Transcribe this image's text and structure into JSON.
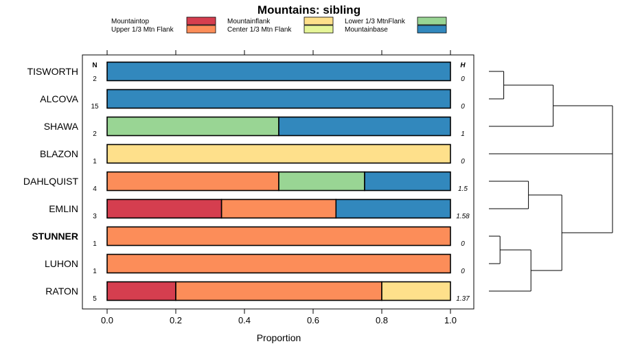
{
  "chart_data": {
    "type": "bar",
    "stacked": true,
    "orientation": "horizontal",
    "title": "Mountains: sibling",
    "xlabel": "Proportion",
    "xlim": [
      0,
      1
    ],
    "xticks": [
      0.0,
      0.2,
      0.4,
      0.6,
      0.8,
      1.0
    ],
    "xtick_labels": [
      "0.0",
      "0.2",
      "0.4",
      "0.6",
      "0.8",
      "1.0"
    ],
    "n_header": "N",
    "h_header": "H",
    "legend": [
      {
        "name": "Mountaintop",
        "color": "#d53e4f"
      },
      {
        "name": "Upper 1/3 Mtn Flank",
        "color": "#fc8d59"
      },
      {
        "name": "Mountainflank",
        "color": "#fee08b"
      },
      {
        "name": "Center 1/3 Mtn Flank",
        "color": "#e6f598"
      },
      {
        "name": "Lower 1/3 MtnFlank",
        "color": "#99d594"
      },
      {
        "name": "Mountainbase",
        "color": "#3288bd"
      }
    ],
    "rows": [
      {
        "label": "TISWORTH",
        "bold": false,
        "n": "2",
        "h": "0",
        "segments": [
          {
            "cat": 5,
            "value": 1.0
          }
        ]
      },
      {
        "label": "ALCOVA",
        "bold": false,
        "n": "15",
        "h": "0",
        "segments": [
          {
            "cat": 5,
            "value": 1.0
          }
        ]
      },
      {
        "label": "SHAWA",
        "bold": false,
        "n": "2",
        "h": "1",
        "segments": [
          {
            "cat": 4,
            "value": 0.5
          },
          {
            "cat": 5,
            "value": 0.5
          }
        ]
      },
      {
        "label": "BLAZON",
        "bold": false,
        "n": "1",
        "h": "0",
        "segments": [
          {
            "cat": 2,
            "value": 1.0
          }
        ]
      },
      {
        "label": "DAHLQUIST",
        "bold": false,
        "n": "4",
        "h": "1.5",
        "segments": [
          {
            "cat": 1,
            "value": 0.5
          },
          {
            "cat": 4,
            "value": 0.25
          },
          {
            "cat": 5,
            "value": 0.25
          }
        ]
      },
      {
        "label": "EMLIN",
        "bold": false,
        "n": "3",
        "h": "1.58",
        "segments": [
          {
            "cat": 0,
            "value": 0.3333
          },
          {
            "cat": 1,
            "value": 0.3333
          },
          {
            "cat": 5,
            "value": 0.3334
          }
        ]
      },
      {
        "label": "STUNNER",
        "bold": true,
        "n": "1",
        "h": "0",
        "segments": [
          {
            "cat": 1,
            "value": 1.0
          }
        ]
      },
      {
        "label": "LUHON",
        "bold": false,
        "n": "1",
        "h": "0",
        "segments": [
          {
            "cat": 1,
            "value": 1.0
          }
        ]
      },
      {
        "label": "RATON",
        "bold": false,
        "n": "5",
        "h": "1.37",
        "segments": [
          {
            "cat": 0,
            "value": 0.2
          },
          {
            "cat": 1,
            "value": 0.6
          },
          {
            "cat": 2,
            "value": 0.2
          }
        ]
      }
    ],
    "dendrogram": {
      "leaves_in_order": [
        "TISWORTH",
        "ALCOVA",
        "SHAWA",
        "BLAZON",
        "DAHLQUIST",
        "EMLIN",
        "STUNNER",
        "LUHON",
        "RATON"
      ],
      "merges": [
        {
          "a": "TISWORTH",
          "b": "ALCOVA",
          "height": 0.12
        },
        {
          "a": "TISWORTH+ALCOVA",
          "b": "SHAWA",
          "height": 0.52
        },
        {
          "a": "DAHLQUIST",
          "b": "EMLIN",
          "height": 0.32
        },
        {
          "a": "STUNNER",
          "b": "LUHON",
          "height": 0.09
        },
        {
          "a": "STUNNER+LUHON",
          "b": "RATON",
          "height": 0.34
        },
        {
          "a": "DAHLQUIST+EMLIN",
          "b": "STUNNER+LUHON+RATON",
          "height": 0.59
        },
        {
          "a": "TISWORTH+ALCOVA+SHAWA",
          "b": "DAHLQUIST+EMLIN+STUNNER+LUHON+RATON",
          "height": 1.0
        },
        {
          "a": "ALL_OTHERS",
          "b": "BLAZON",
          "height": 1.0
        }
      ]
    }
  }
}
